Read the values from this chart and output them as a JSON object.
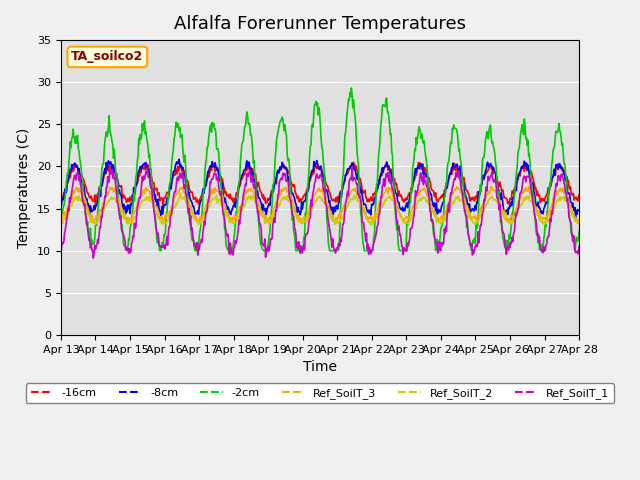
{
  "title": "Alfalfa Forerunner Temperatures",
  "xlabel": "Time",
  "ylabel": "Temperatures (C)",
  "ylim": [
    0,
    35
  ],
  "annotation": "TA_soilco2",
  "legend_labels": [
    "-16cm",
    "-8cm",
    "-2cm",
    "Ref_SoilT_3",
    "Ref_SoilT_2",
    "Ref_SoilT_1"
  ],
  "line_colors": [
    "#ff0000",
    "#0000ff",
    "#00cc00",
    "#ffa500",
    "#cccc00",
    "#cc00cc"
  ],
  "xtick_labels": [
    "Apr 13",
    "Apr 14",
    "Apr 15",
    "Apr 16",
    "Apr 17",
    "Apr 18",
    "Apr 19",
    "Apr 20",
    "Apr 21",
    "Apr 22",
    "Apr 23",
    "Apr 24",
    "Apr 25",
    "Apr 26",
    "Apr 27",
    "Apr 28"
  ],
  "n_days": 15,
  "background_color": "#f0f0f0",
  "plot_bg_color": "#e0e0e0"
}
